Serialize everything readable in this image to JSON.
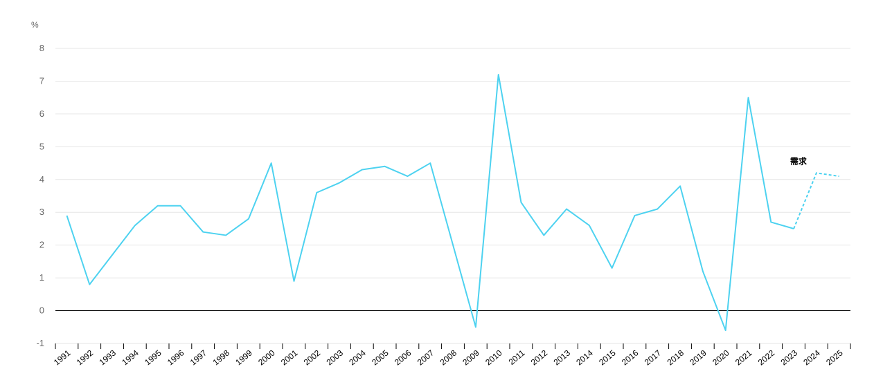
{
  "chart_data": {
    "type": "line",
    "ylabel": "%",
    "ylim": [
      -1,
      8
    ],
    "yticks": [
      -1,
      0,
      1,
      2,
      3,
      4,
      5,
      6,
      7,
      8
    ],
    "grid": true,
    "line_color": "#4dd2f0",
    "categories": [
      "1991",
      "1992",
      "1993",
      "1994",
      "1995",
      "1996",
      "1997",
      "1998",
      "1999",
      "2000",
      "2001",
      "2002",
      "2003",
      "2004",
      "2005",
      "2006",
      "2007",
      "2008",
      "2009",
      "2010",
      "2011",
      "2012",
      "2013",
      "2014",
      "2015",
      "2016",
      "2017",
      "2018",
      "2019",
      "2020",
      "2021",
      "2022",
      "2023",
      "2024",
      "2025"
    ],
    "series": [
      {
        "values": [
          2.9,
          0.8,
          1.7,
          2.6,
          3.2,
          3.2,
          2.4,
          2.3,
          2.8,
          4.5,
          0.9,
          3.6,
          3.9,
          4.3,
          4.4,
          4.1,
          4.5,
          2.0,
          -0.5,
          7.2,
          3.3,
          2.3,
          3.1,
          2.6,
          1.3,
          2.9,
          3.1,
          3.8,
          1.2,
          -0.6,
          6.5,
          2.7,
          2.5,
          4.2,
          4.1
        ],
        "forecast_from": "2023"
      }
    ],
    "annotations": [
      {
        "text": "需求",
        "x": "2024",
        "y": 4.2
      }
    ]
  }
}
